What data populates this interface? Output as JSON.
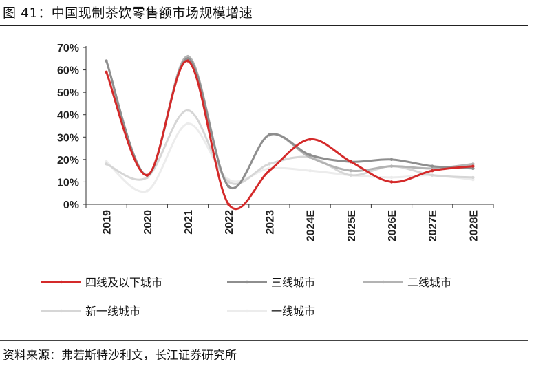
{
  "title": "图 41：中国现制茶饮零售额市场规模增速",
  "source": "资料来源：弗若斯特沙利文，长江证券研究所",
  "chart_data": {
    "type": "line",
    "categories": [
      "2019",
      "2020",
      "2021",
      "2022",
      "2023",
      "2024E",
      "2025E",
      "2026E",
      "2027E",
      "2028E"
    ],
    "ylim": [
      0,
      70
    ],
    "yticks": [
      0,
      10,
      20,
      30,
      40,
      50,
      60,
      70
    ],
    "ytick_labels": [
      "0%",
      "10%",
      "20%",
      "30%",
      "40%",
      "50%",
      "60%",
      "70%"
    ],
    "legend_position": "bottom",
    "series": [
      {
        "name": "四线及以下城市",
        "color": "#d42a2a",
        "width": 3,
        "values": [
          59,
          13,
          64,
          0,
          15,
          29,
          19,
          10,
          15,
          17
        ]
      },
      {
        "name": "三线城市",
        "color": "#8e8e8e",
        "width": 3,
        "values": [
          64,
          13,
          65,
          8,
          31,
          22,
          19,
          20,
          17,
          16
        ]
      },
      {
        "name": "二线城市",
        "color": "#b3b3b3",
        "width": 3,
        "values": [
          64,
          13,
          66,
          8,
          31,
          21,
          15,
          17,
          16,
          18
        ]
      },
      {
        "name": "新一线城市",
        "color": "#d6d6d6",
        "width": 3,
        "values": [
          18,
          12,
          42,
          10,
          18,
          21,
          13,
          17,
          13,
          12
        ]
      },
      {
        "name": "一线城市",
        "color": "#ececec",
        "width": 3,
        "values": [
          19,
          6,
          36,
          11,
          16,
          15,
          13,
          12,
          13,
          11
        ]
      }
    ]
  }
}
